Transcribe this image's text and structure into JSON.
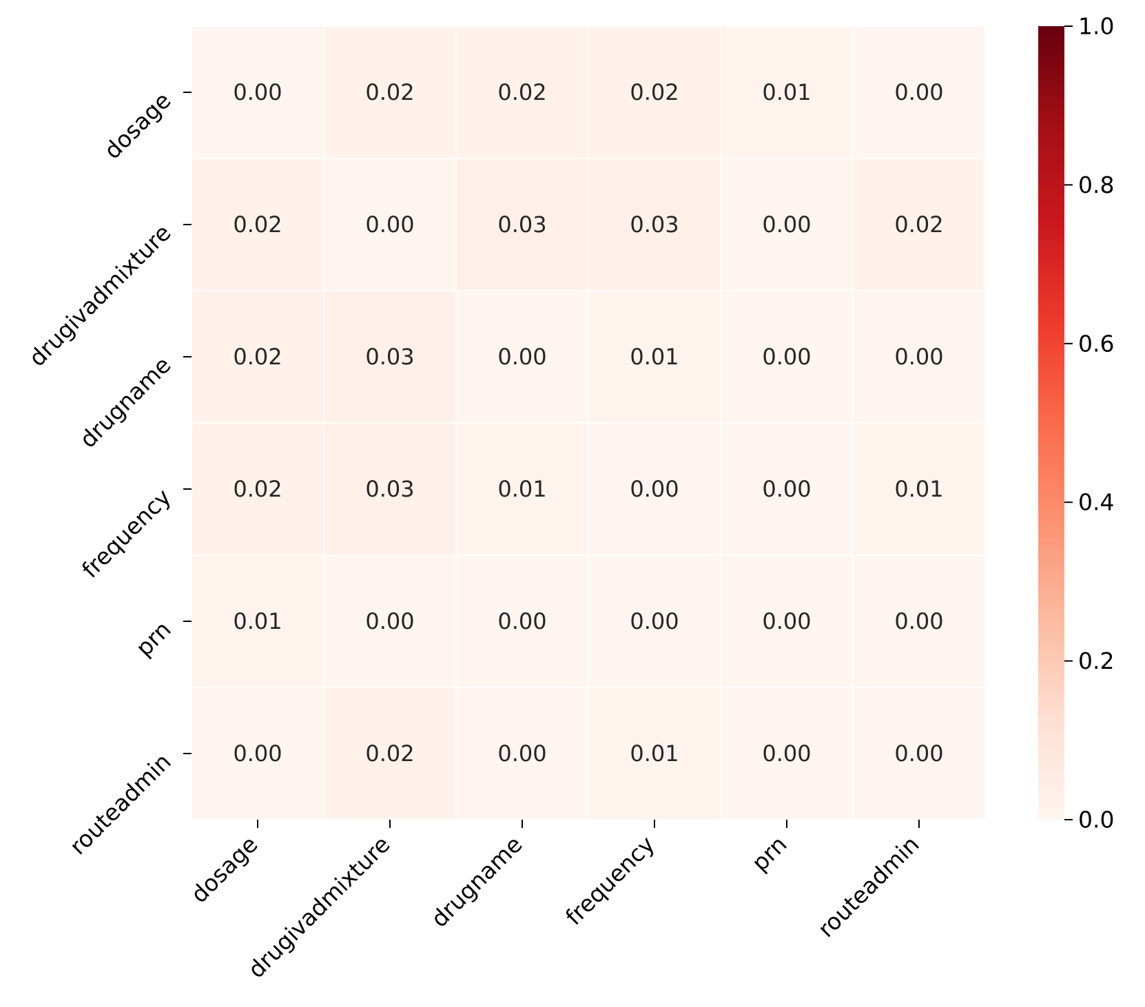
{
  "chart_data": {
    "type": "heatmap",
    "title": "",
    "xlabel": "",
    "ylabel": "",
    "x_categories": [
      "dosage",
      "drugivadmixture",
      "drugname",
      "frequency",
      "prn",
      "routeadmin"
    ],
    "y_categories": [
      "dosage",
      "drugivadmixture",
      "drugname",
      "frequency",
      "prn",
      "routeadmin"
    ],
    "values": [
      [
        0.0,
        0.02,
        0.02,
        0.02,
        0.01,
        0.0
      ],
      [
        0.02,
        0.0,
        0.03,
        0.03,
        0.0,
        0.02
      ],
      [
        0.02,
        0.03,
        0.0,
        0.01,
        0.0,
        0.0
      ],
      [
        0.02,
        0.03,
        0.01,
        0.0,
        0.0,
        0.01
      ],
      [
        0.01,
        0.0,
        0.0,
        0.0,
        0.0,
        0.0
      ],
      [
        0.0,
        0.02,
        0.0,
        0.01,
        0.0,
        0.0
      ]
    ],
    "cell_labels": [
      [
        "0.00",
        "0.02",
        "0.02",
        "0.02",
        "0.01",
        "0.00"
      ],
      [
        "0.02",
        "0.00",
        "0.03",
        "0.03",
        "0.00",
        "0.02"
      ],
      [
        "0.02",
        "0.03",
        "0.00",
        "0.01",
        "0.00",
        "0.00"
      ],
      [
        "0.02",
        "0.03",
        "0.01",
        "0.00",
        "0.00",
        "0.01"
      ],
      [
        "0.01",
        "0.00",
        "0.00",
        "0.00",
        "0.00",
        "0.00"
      ],
      [
        "0.00",
        "0.02",
        "0.00",
        "0.01",
        "0.00",
        "0.00"
      ]
    ],
    "colorbar": {
      "colormap": "Reds",
      "vmin": 0.0,
      "vmax": 1.0,
      "ticks": [
        0.0,
        0.2,
        0.4,
        0.6,
        0.8,
        1.0
      ],
      "tick_labels": [
        "0.0",
        "0.2",
        "0.4",
        "0.6",
        "0.8",
        "1.0"
      ]
    },
    "colormap_stops": [
      "#fff5f0",
      "#fee0d2",
      "#fcbba1",
      "#fc9272",
      "#fb6a4a",
      "#ef3b2c",
      "#cb181d",
      "#a50f15",
      "#67000d"
    ]
  }
}
